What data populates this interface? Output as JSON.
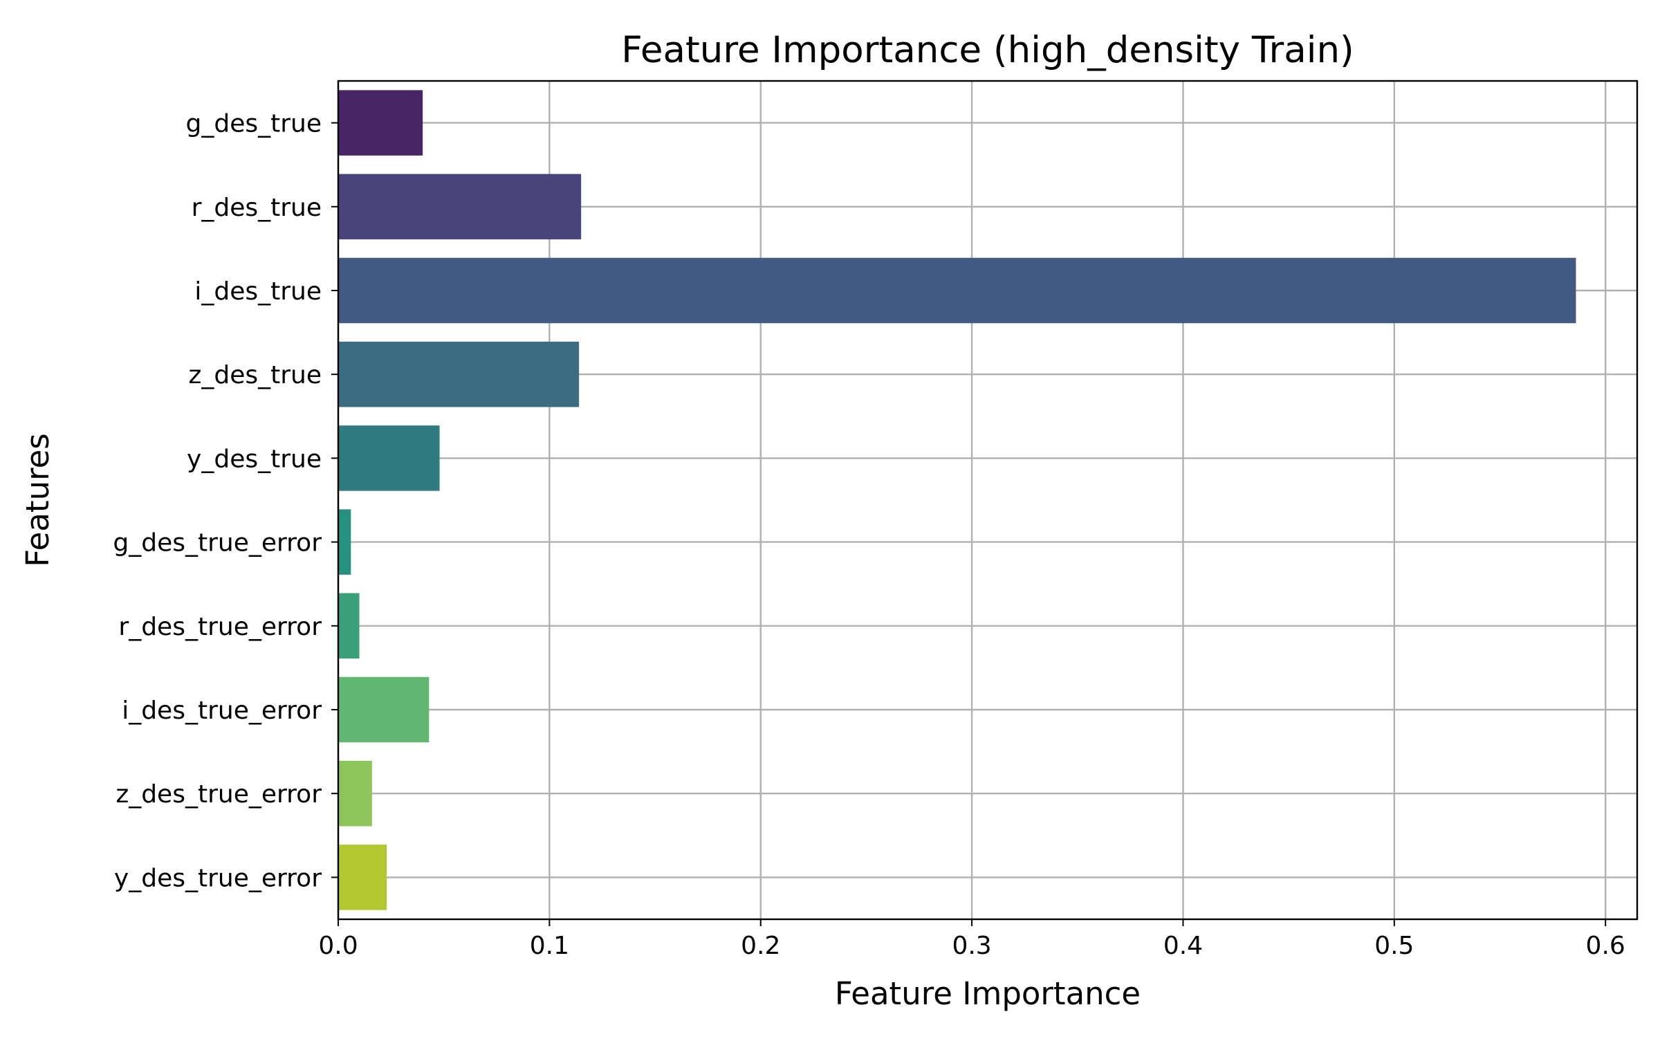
{
  "chart_data": {
    "type": "bar",
    "orientation": "horizontal",
    "title": "Feature Importance (high_density Train)",
    "xlabel": "Feature Importance",
    "ylabel": "Features",
    "xlim": [
      0,
      0.615
    ],
    "xticks": [
      0.0,
      0.1,
      0.2,
      0.3,
      0.4,
      0.5,
      0.6
    ],
    "xtick_labels": [
      "0.0",
      "0.1",
      "0.2",
      "0.3",
      "0.4",
      "0.5",
      "0.6"
    ],
    "grid": true,
    "categories": [
      "g_des_true",
      "r_des_true",
      "i_des_true",
      "z_des_true",
      "y_des_true",
      "g_des_true_error",
      "r_des_true_error",
      "i_des_true_error",
      "z_des_true_error",
      "y_des_true_error"
    ],
    "values": [
      0.04,
      0.115,
      0.586,
      0.114,
      0.048,
      0.006,
      0.01,
      0.043,
      0.016,
      0.023
    ],
    "colors": [
      "#482566",
      "#4a447d",
      "#435b83",
      "#3a6d81",
      "#2f7c80",
      "#27917f",
      "#3aa07a",
      "#61b671",
      "#8bc55c",
      "#b3c733"
    ]
  }
}
